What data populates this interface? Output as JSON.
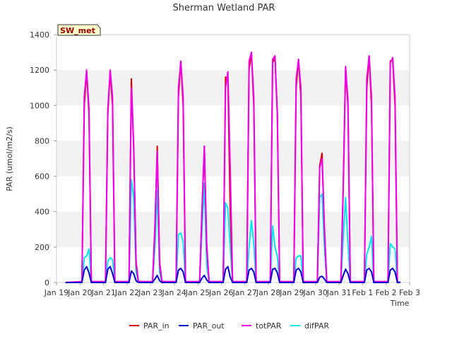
{
  "chart_data": {
    "type": "line",
    "title": "Sherman Wetland PAR",
    "xlabel": "Time",
    "ylabel": "PAR (umol/m2/s)",
    "ylim": [
      0,
      1400
    ],
    "yticks": [
      0,
      200,
      400,
      600,
      800,
      1000,
      1200,
      1400
    ],
    "xlim": [
      0,
      15
    ],
    "xticks": [
      {
        "day": 0,
        "label": "Jan 19"
      },
      {
        "day": 1,
        "label": "Jan 20"
      },
      {
        "day": 2,
        "label": "Jan 21"
      },
      {
        "day": 3,
        "label": "Jan 22"
      },
      {
        "day": 4,
        "label": "Jan 23"
      },
      {
        "day": 5,
        "label": "Jan 24"
      },
      {
        "day": 6,
        "label": "Jan 25"
      },
      {
        "day": 7,
        "label": "Jan 26"
      },
      {
        "day": 8,
        "label": "Jan 27"
      },
      {
        "day": 9,
        "label": "Jan 28"
      },
      {
        "day": 10,
        "label": "Jan 29"
      },
      {
        "day": 11,
        "label": "Jan 30"
      },
      {
        "day": 12,
        "label": "Jan 31"
      },
      {
        "day": 13,
        "label": "Feb 1"
      },
      {
        "day": 14,
        "label": "Feb 2"
      },
      {
        "day": 15,
        "label": "Feb 3"
      }
    ],
    "grid": "horizontal bands",
    "legend_position": "bottom",
    "station_label": "SW_met",
    "x_days": [
      0.38,
      1.08,
      1.18,
      1.28,
      1.38,
      1.48,
      2.08,
      2.18,
      2.28,
      2.38,
      2.48,
      3.08,
      3.18,
      3.28,
      3.38,
      3.48,
      4.08,
      4.18,
      4.28,
      4.38,
      4.48,
      5.08,
      5.18,
      5.28,
      5.38,
      5.48,
      6.08,
      6.18,
      6.28,
      6.38,
      6.48,
      7.08,
      7.18,
      7.28,
      7.38,
      7.48,
      8.08,
      8.18,
      8.28,
      8.38,
      8.48,
      9.08,
      9.18,
      9.28,
      9.38,
      9.48,
      10.08,
      10.18,
      10.28,
      10.38,
      10.48,
      11.08,
      11.18,
      11.28,
      11.38,
      11.48,
      12.08,
      12.18,
      12.28,
      12.38,
      12.48,
      13.08,
      13.18,
      13.28,
      13.38,
      13.48,
      14.08,
      14.18,
      14.28,
      14.38,
      14.48,
      14.6
    ],
    "series": [
      {
        "name": "PAR_in",
        "color": "#dd0000",
        "values": [
          0,
          5,
          1000,
          1190,
          950,
          5,
          5,
          950,
          1190,
          1000,
          5,
          5,
          1150,
          750,
          100,
          5,
          5,
          300,
          770,
          100,
          5,
          5,
          1050,
          1250,
          1000,
          5,
          5,
          400,
          770,
          200,
          5,
          5,
          1160,
          1150,
          400,
          5,
          5,
          1200,
          1300,
          1000,
          5,
          5,
          1240,
          1270,
          950,
          5,
          5,
          1100,
          1260,
          1050,
          5,
          5,
          660,
          730,
          300,
          5,
          5,
          530,
          1210,
          1000,
          5,
          5,
          1100,
          1280,
          1000,
          5,
          5,
          1250,
          1260,
          1000,
          5,
          0
        ]
      },
      {
        "name": "PAR_out",
        "color": "#0000cc",
        "values": [
          0,
          0,
          70,
          90,
          55,
          0,
          0,
          75,
          90,
          50,
          0,
          0,
          65,
          50,
          10,
          0,
          0,
          20,
          40,
          10,
          0,
          0,
          70,
          80,
          60,
          0,
          0,
          25,
          40,
          15,
          0,
          0,
          75,
          90,
          30,
          0,
          0,
          70,
          80,
          60,
          0,
          0,
          75,
          80,
          55,
          0,
          0,
          70,
          80,
          60,
          0,
          0,
          30,
          35,
          20,
          0,
          0,
          40,
          75,
          50,
          0,
          0,
          70,
          80,
          60,
          0,
          0,
          70,
          80,
          60,
          0,
          0
        ]
      },
      {
        "name": "totPAR",
        "color": "#ee00ee",
        "values": [
          0,
          5,
          1050,
          1200,
          980,
          5,
          5,
          980,
          1200,
          1050,
          5,
          5,
          1100,
          780,
          120,
          5,
          5,
          320,
          740,
          120,
          5,
          5,
          1100,
          1250,
          1050,
          5,
          5,
          420,
          770,
          220,
          5,
          5,
          1100,
          1190,
          640,
          5,
          5,
          1250,
          1300,
          1050,
          5,
          5,
          1260,
          1280,
          960,
          5,
          5,
          1150,
          1260,
          1100,
          5,
          5,
          650,
          700,
          320,
          5,
          5,
          550,
          1220,
          1030,
          5,
          5,
          1150,
          1280,
          1050,
          5,
          5,
          1240,
          1270,
          1050,
          5,
          0
        ]
      },
      {
        "name": "difPAR",
        "color": "#00e5ee",
        "values": [
          0,
          0,
          140,
          150,
          190,
          0,
          0,
          120,
          140,
          130,
          0,
          0,
          580,
          480,
          60,
          0,
          0,
          200,
          520,
          60,
          0,
          0,
          270,
          280,
          230,
          0,
          0,
          300,
          560,
          100,
          0,
          0,
          450,
          420,
          200,
          0,
          0,
          200,
          350,
          220,
          0,
          0,
          320,
          200,
          150,
          0,
          0,
          140,
          150,
          150,
          0,
          0,
          480,
          500,
          200,
          0,
          0,
          250,
          480,
          220,
          0,
          0,
          160,
          200,
          260,
          0,
          0,
          220,
          200,
          190,
          0,
          0
        ]
      }
    ]
  }
}
